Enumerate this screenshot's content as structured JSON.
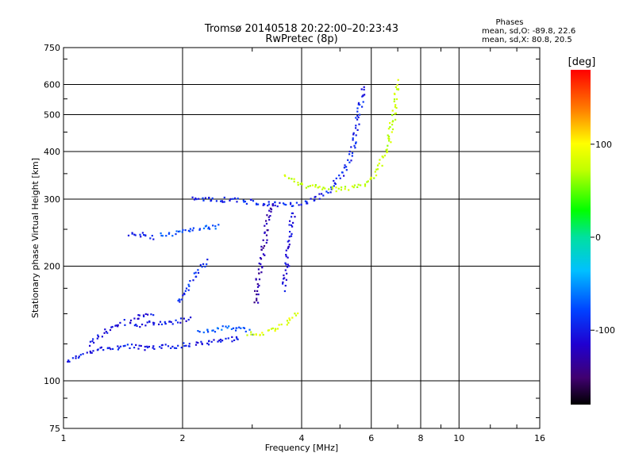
{
  "chart_data": {
    "type": "scatter",
    "title": "Tromsø 20140518 20:22:00–20:23:43",
    "subtitle": "RwPretec (8p)",
    "xlabel": "Frequency [MHz]",
    "ylabel": "Stationary phase Virtual Height [km]",
    "x_scale": "log",
    "y_scale": "log",
    "xlim": [
      1,
      16
    ],
    "ylim": [
      75,
      750
    ],
    "x_ticks": [
      1,
      2,
      4,
      6,
      8,
      10,
      16
    ],
    "x_tick_labels": [
      "1",
      "2",
      "4",
      "6",
      "8",
      "10",
      "16"
    ],
    "y_ticks": [
      75,
      100,
      200,
      300,
      400,
      500,
      600,
      750
    ],
    "y_tick_labels": [
      "75",
      "100",
      "200",
      "300",
      "400",
      "500",
      "600",
      "750"
    ],
    "grid": true,
    "stats": {
      "heading": "Phases",
      "line_o": "mean, sd,O: -89.8, 22.6",
      "line_x": "mean, sd,X:  80.8, 20.5"
    },
    "colorbar": {
      "label": "[deg]",
      "range": [
        -180,
        180
      ],
      "ticks": [
        100,
        0,
        -100
      ],
      "tick_labels": [
        "100",
        "0",
        "-100"
      ]
    },
    "traces": [
      {
        "x": [
          1.02,
          1.1,
          1.2,
          1.35,
          1.5,
          1.6,
          1.75,
          1.9,
          2.05,
          2.2,
          2.4,
          2.6,
          2.8
        ],
        "y": [
          113,
          117,
          121,
          123,
          124,
          122,
          123,
          124,
          125,
          126,
          127,
          129,
          131
        ],
        "phase": -100
      },
      {
        "x": [
          1.15,
          1.25,
          1.4,
          1.55,
          1.7
        ],
        "y": [
          125,
          134,
          142,
          148,
          150
        ],
        "phase": -105
      },
      {
        "x": [
          1.5,
          1.65,
          1.8,
          1.95,
          2.1
        ],
        "y": [
          140,
          142,
          143,
          144,
          146
        ],
        "phase": -100
      },
      {
        "x": [
          2.2,
          2.4,
          2.6,
          2.85,
          3.0
        ],
        "y": [
          135,
          137,
          139,
          137,
          134
        ],
        "phase": -70
      },
      {
        "x": [
          2.9,
          3.1,
          3.3,
          3.5,
          3.7,
          3.9
        ],
        "y": [
          133,
          134,
          136,
          139,
          143,
          152
        ],
        "phase": 85
      },
      {
        "x": [
          1.45,
          1.52,
          1.6,
          1.7
        ],
        "y": [
          243,
          245,
          241,
          238
        ],
        "phase": -100
      },
      {
        "x": [
          1.75,
          1.9,
          2.0,
          2.15,
          2.3,
          2.5
        ],
        "y": [
          243,
          245,
          248,
          251,
          254,
          256
        ],
        "phase": -75
      },
      {
        "x": [
          2.1,
          2.25,
          2.4,
          2.6,
          2.8,
          3.0,
          3.3,
          3.6,
          3.9,
          4.2,
          4.6,
          5.0,
          5.3,
          5.5,
          5.7
        ],
        "y": [
          305,
          303,
          301,
          300,
          298,
          296,
          293,
          292,
          293,
          298,
          313,
          345,
          390,
          470,
          600
        ],
        "phase": -95
      },
      {
        "x": [
          3.6,
          4.0,
          4.5,
          5.0,
          5.5,
          6.0,
          6.3,
          6.6,
          6.8,
          7.0
        ],
        "y": [
          345,
          330,
          322,
          320,
          325,
          340,
          370,
          420,
          500,
          620
        ],
        "phase": 75
      },
      {
        "x": [
          3.05,
          3.1,
          3.2,
          3.3,
          3.4
        ],
        "y": [
          160,
          190,
          230,
          280,
          300
        ],
        "phase": -130
      },
      {
        "x": [
          3.6,
          3.65,
          3.7,
          3.8
        ],
        "y": [
          175,
          200,
          235,
          280
        ],
        "phase": -110
      },
      {
        "x": [
          1.95,
          2.05,
          2.15,
          2.3
        ],
        "y": [
          160,
          175,
          190,
          210
        ],
        "phase": -90
      }
    ]
  }
}
